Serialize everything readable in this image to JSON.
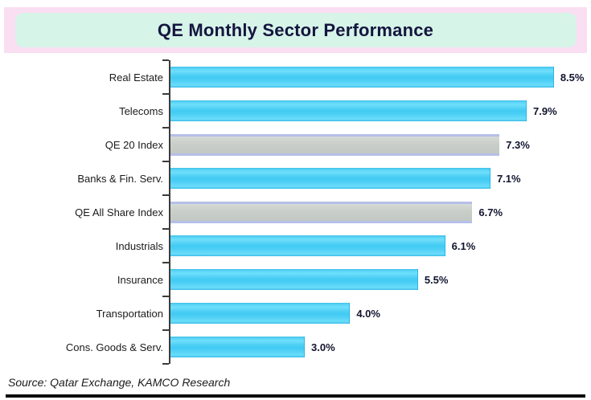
{
  "header": {
    "title": "QE Monthly Sector Performance"
  },
  "footer": {
    "source": "Source: Qatar Exchange, KAMCO Research"
  },
  "colors": {
    "banner_pink": "#fadef2",
    "title_box_mint": "#d6f4e8",
    "title_text": "#15153f",
    "bar_cyan": "#4bcdf4",
    "bar_cyan_edge": "#2cb6e6",
    "bar_gray": "#c9cec9",
    "bar_gray_edge": "#b6bfe9",
    "axis": "#3c3c3c",
    "label_text": "#1b1b1b",
    "value_text": "#11142e"
  },
  "chart_data": {
    "type": "bar",
    "orientation": "horizontal",
    "title": "QE Monthly Sector Performance",
    "categories": [
      "Real Estate",
      "Telecoms",
      "QE 20 Index",
      "Banks & Fin. Serv.",
      "QE All Share Index",
      "Industrials",
      "Insurance",
      "Transportation",
      "Cons. Goods & Serv."
    ],
    "values": [
      8.5,
      7.9,
      7.3,
      7.1,
      6.7,
      6.1,
      5.5,
      4.0,
      3.0
    ],
    "value_labels": [
      "8.5%",
      "7.9%",
      "7.3%",
      "7.1%",
      "6.7%",
      "6.1%",
      "5.5%",
      "4.0%",
      "3.0%"
    ],
    "bar_styles": [
      "sector",
      "sector",
      "index",
      "sector",
      "index",
      "sector",
      "sector",
      "sector",
      "sector"
    ],
    "xlim": [
      0,
      9
    ],
    "grid": false,
    "legend": false,
    "value_labels_position": "end-of-bar",
    "source": "Source: Qatar Exchange, KAMCO Research"
  }
}
